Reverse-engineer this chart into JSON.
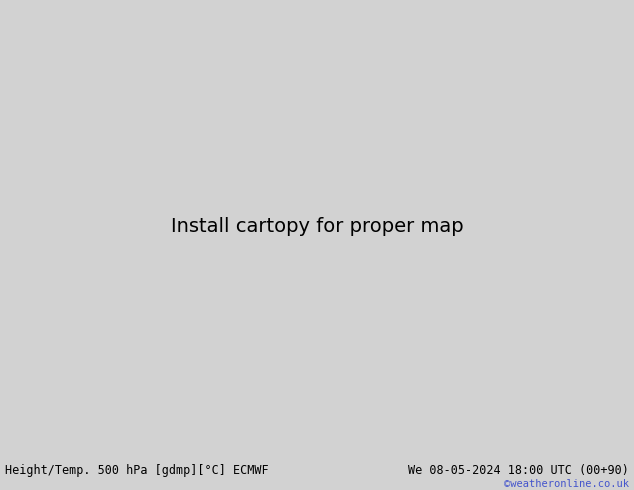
{
  "title_left": "Height/Temp. 500 hPa [gdmp][°C] ECMWF",
  "title_right": "We 08-05-2024 18:00 UTC (00+90)",
  "copyright": "©weatheronline.co.uk",
  "bg_ocean": "#d2d2d2",
  "land_green": "#c8e8b0",
  "land_gray": "#b8b8b8",
  "contour_black": "#000000",
  "contour_orange": "#e08000",
  "contour_red": "#cc2222",
  "contour_green": "#44aa00",
  "contour_cyan": "#00bbbb",
  "bottom_bg": "#e8e8e8",
  "bottom_text": "#000000",
  "copyright_color": "#4455cc",
  "lon_min": 88,
  "lon_max": 160,
  "lat_min": -15,
  "lat_max": 55
}
